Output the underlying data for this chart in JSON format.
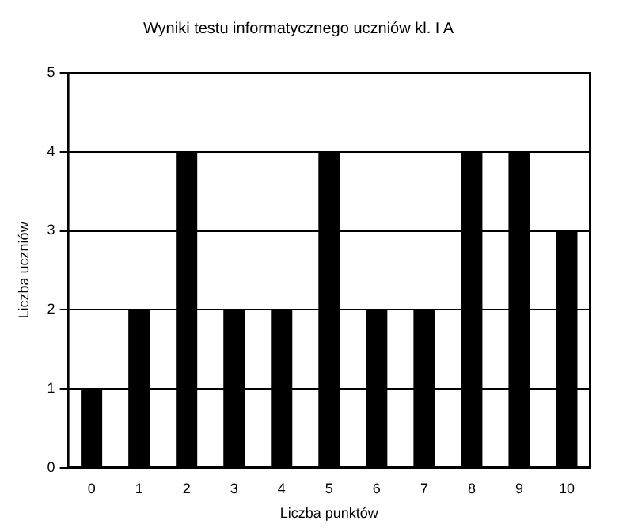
{
  "chart_data": {
    "type": "bar",
    "title": "Wyniki testu informatycznego uczniów kl. I A",
    "xlabel": "Liczba punktów",
    "ylabel": "Liczba uczniów",
    "categories": [
      "0",
      "1",
      "2",
      "3",
      "4",
      "5",
      "6",
      "7",
      "8",
      "9",
      "10"
    ],
    "values": [
      1,
      2,
      4,
      2,
      2,
      4,
      2,
      2,
      4,
      4,
      3
    ],
    "color": "#000000",
    "ylim": [
      0,
      5
    ],
    "yticks": [
      0,
      1,
      2,
      3,
      4,
      5
    ],
    "grid": "y",
    "legend": false
  }
}
